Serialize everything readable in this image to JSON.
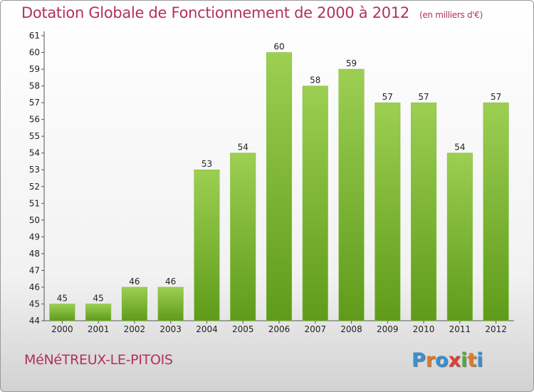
{
  "title": "Dotation Globale de Fonctionnement de 2000 à 2012",
  "unit": "(en milliers d'€)",
  "city": "MéNéTREUX-LE-PITOIS",
  "logo": {
    "text": "Proxiti",
    "letters": [
      {
        "char": "P",
        "color": "#3a8fd0"
      },
      {
        "char": "r",
        "color": "#e07a2a"
      },
      {
        "char": "o",
        "color": "#3a8fd0"
      },
      {
        "char": "x",
        "color": "#e03c3c"
      },
      {
        "char": "i",
        "color": "#59a83a"
      },
      {
        "char": "t",
        "color": "#e07a2a"
      },
      {
        "char": "i",
        "color": "#3a8fd0"
      }
    ]
  },
  "colors": {
    "bar_top": "#9ccf52",
    "bar_bottom": "#5f9b1a",
    "title": "#b3315a"
  },
  "chart_data": {
    "type": "bar",
    "categories": [
      "2000",
      "2001",
      "2002",
      "2003",
      "2004",
      "2005",
      "2006",
      "2007",
      "2008",
      "2009",
      "2010",
      "2011",
      "2012"
    ],
    "values": [
      45,
      45,
      46,
      46,
      53,
      54,
      60,
      58,
      59,
      57,
      57,
      54,
      57
    ],
    "ylim": [
      44,
      61
    ],
    "yticks": [
      44,
      45,
      46,
      47,
      48,
      49,
      50,
      51,
      52,
      53,
      54,
      55,
      56,
      57,
      58,
      59,
      60,
      61
    ],
    "grid": false,
    "legend": "none"
  }
}
